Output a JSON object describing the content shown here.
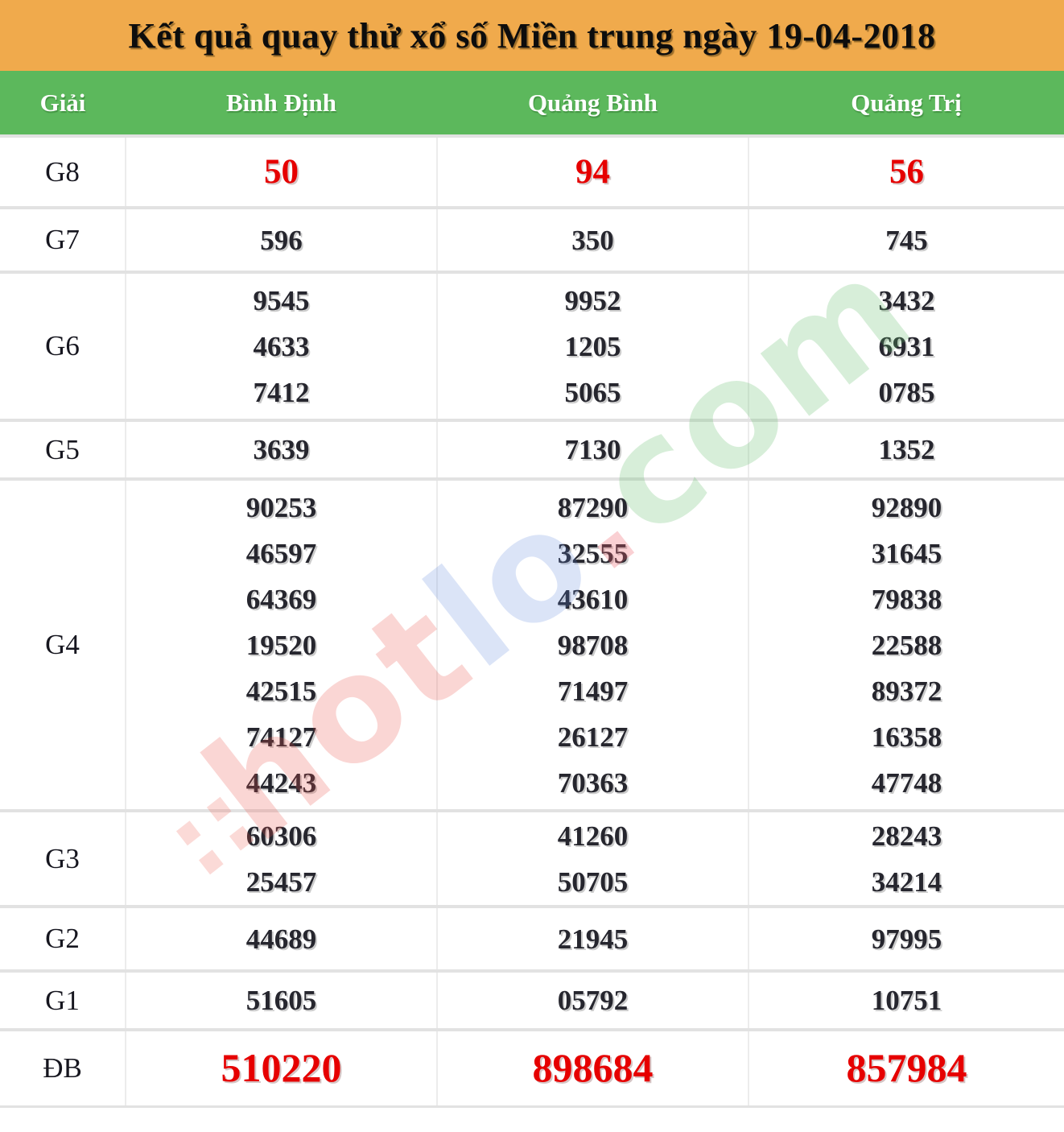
{
  "title": "Kết quả quay thử xổ số Miền trung ngày 19-04-2018",
  "columns": [
    "Giải",
    "Bình Định",
    "Quảng Bình",
    "Quảng Trị"
  ],
  "rows": [
    {
      "label": "G8",
      "highlight": true,
      "values": [
        [
          "50"
        ],
        [
          "94"
        ],
        [
          "56"
        ]
      ]
    },
    {
      "label": "G7",
      "highlight": false,
      "values": [
        [
          "596"
        ],
        [
          "350"
        ],
        [
          "745"
        ]
      ]
    },
    {
      "label": "G6",
      "highlight": false,
      "values": [
        [
          "9545",
          "4633",
          "7412"
        ],
        [
          "9952",
          "1205",
          "5065"
        ],
        [
          "3432",
          "6931",
          "0785"
        ]
      ]
    },
    {
      "label": "G5",
      "highlight": false,
      "values": [
        [
          "3639"
        ],
        [
          "7130"
        ],
        [
          "1352"
        ]
      ]
    },
    {
      "label": "G4",
      "highlight": false,
      "values": [
        [
          "90253",
          "46597",
          "64369",
          "19520",
          "42515",
          "74127",
          "44243"
        ],
        [
          "87290",
          "32555",
          "43610",
          "98708",
          "71497",
          "26127",
          "70363"
        ],
        [
          "92890",
          "31645",
          "79838",
          "22588",
          "89372",
          "16358",
          "47748"
        ]
      ]
    },
    {
      "label": "G3",
      "highlight": false,
      "values": [
        [
          "60306",
          "25457"
        ],
        [
          "41260",
          "50705"
        ],
        [
          "28243",
          "34214"
        ]
      ]
    },
    {
      "label": "G2",
      "highlight": false,
      "values": [
        [
          "44689"
        ],
        [
          "21945"
        ],
        [
          "97995"
        ]
      ]
    },
    {
      "label": "G1",
      "highlight": false,
      "values": [
        [
          "51605"
        ],
        [
          "05792"
        ],
        [
          "10751"
        ]
      ]
    },
    {
      "label": "ĐB",
      "highlight": true,
      "values": [
        [
          "510220"
        ],
        [
          "898684"
        ],
        [
          "857984"
        ]
      ]
    }
  ],
  "colors": {
    "title_bg": "#F0AA4C",
    "header_bg": "#5CB85C",
    "header_text": "#FFFFFF",
    "number": "#26262E",
    "highlight_number": "#E60000",
    "border": "#E2E2E2"
  },
  "watermark": {
    "dots": "∷",
    "part_hot": "hot",
    "part_lo": "lo",
    "part_dot": ".",
    "part_com": "com"
  }
}
